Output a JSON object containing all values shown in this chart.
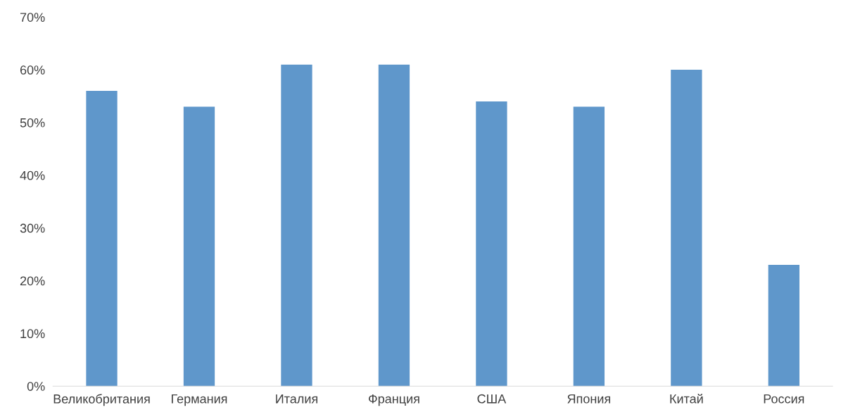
{
  "chart_data": {
    "type": "bar",
    "categories": [
      "Великобритания",
      "Германия",
      "Италия",
      "Франция",
      "США",
      "Япония",
      "Китай",
      "Россия"
    ],
    "values": [
      56,
      53,
      61,
      61,
      54,
      53,
      60,
      23
    ],
    "color": "#5f97cb",
    "ylim": [
      0,
      70
    ],
    "yticks": [
      {
        "value": 0,
        "label": "0%"
      },
      {
        "value": 10,
        "label": "10%"
      },
      {
        "value": 20,
        "label": "20%"
      },
      {
        "value": 30,
        "label": "30%"
      },
      {
        "value": 40,
        "label": "40%"
      },
      {
        "value": 50,
        "label": "50%"
      },
      {
        "value": 60,
        "label": "60%"
      },
      {
        "value": 70,
        "label": "70%"
      }
    ],
    "grid": false,
    "legend": false
  }
}
